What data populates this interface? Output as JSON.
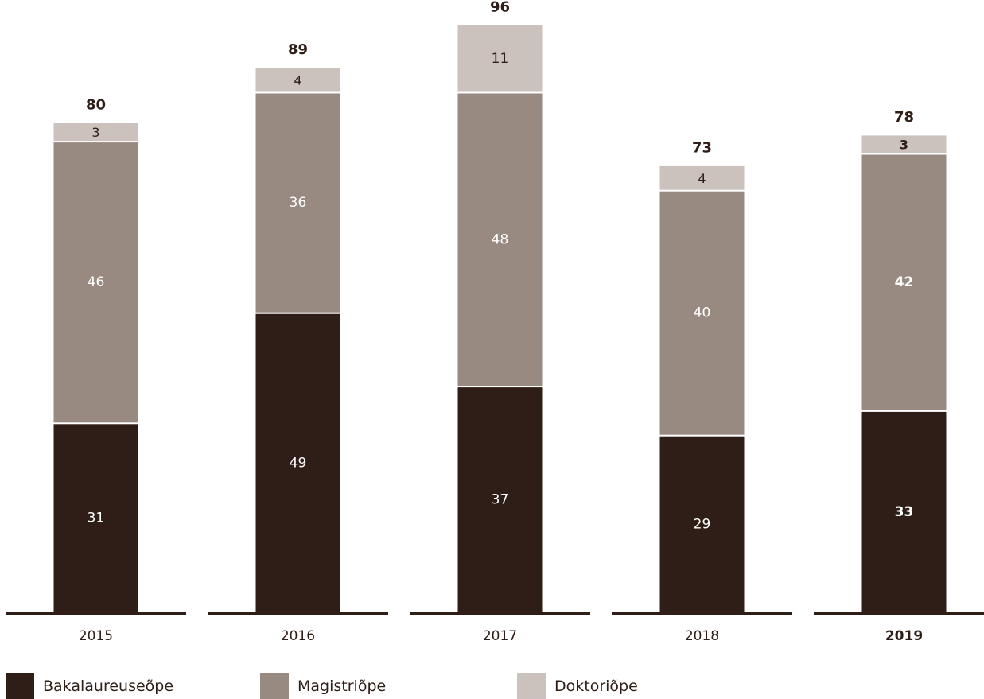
{
  "chart_data": {
    "type": "bar",
    "stacked": true,
    "categories": [
      "2015",
      "2016",
      "2017",
      "2018",
      "2019"
    ],
    "highlight_category": "2019",
    "series": [
      {
        "name": "Bakalaureuseõpe",
        "color": "#2f1e17",
        "label_color": "#ffffff",
        "values": [
          31,
          49,
          37,
          29,
          33
        ]
      },
      {
        "name": "Magistriõpe",
        "color": "#988a80",
        "label_color": "#ffffff",
        "values": [
          46,
          36,
          48,
          40,
          42
        ]
      },
      {
        "name": "Doktoriõpe",
        "color": "#cbc2bd",
        "label_color": "#2f1e17",
        "values": [
          3,
          4,
          11,
          4,
          3
        ]
      }
    ],
    "totals": [
      80,
      89,
      96,
      73,
      78
    ],
    "title": "",
    "xlabel": "",
    "ylabel": "",
    "ylim": [
      0,
      96
    ],
    "grid": false,
    "legend_position": "bottom-left",
    "axis_color": "#2f1e17",
    "text_color": "#2f1e17"
  }
}
